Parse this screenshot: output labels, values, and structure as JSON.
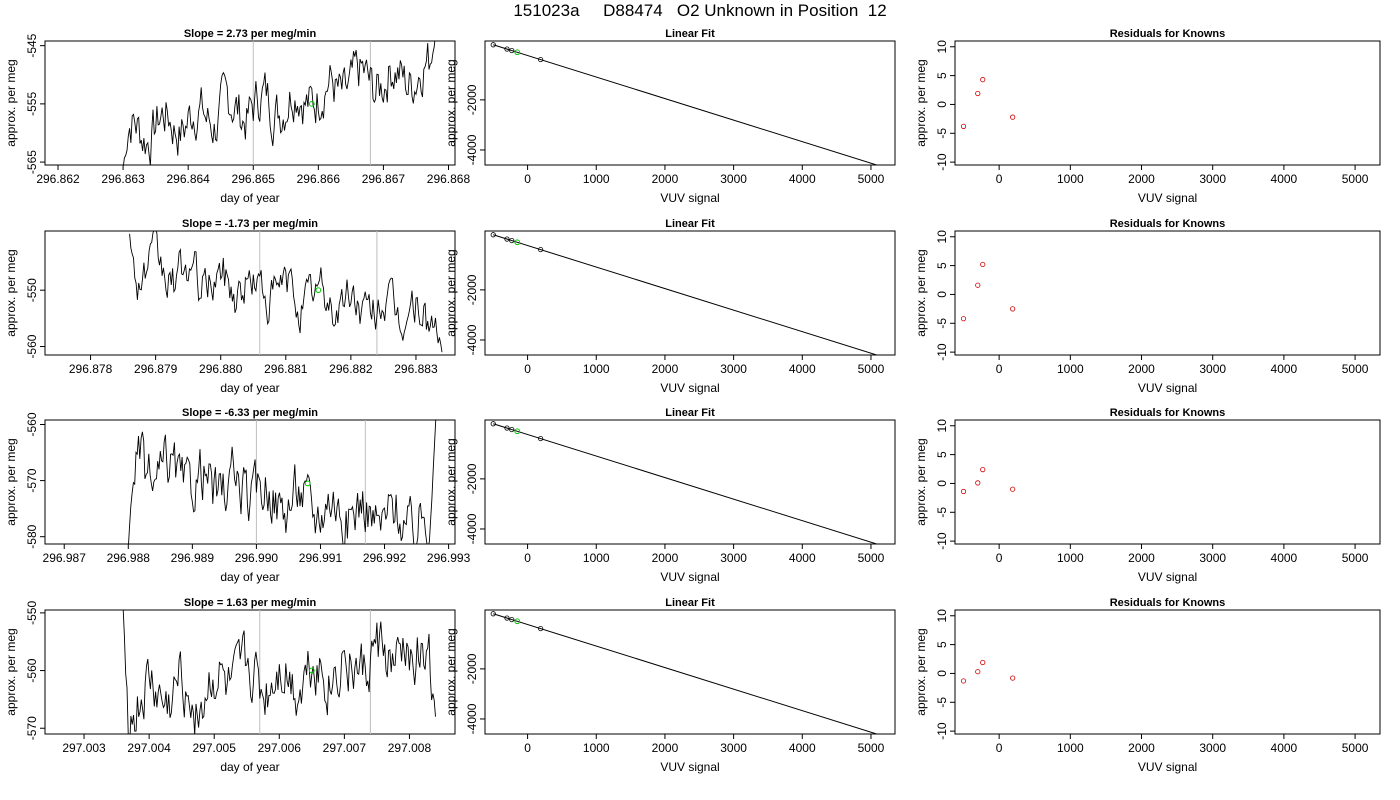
{
  "page": {
    "title": "151023a     D88474   O2 Unknown in Position  12"
  },
  "chart_data": [
    {
      "type": "line",
      "title": "Slope =  2.73  per meg/min",
      "xlabel": "day of year",
      "ylabel": "approx. per meg",
      "xlim": [
        296.8618,
        296.8681
      ],
      "ylim": [
        -565.5,
        -544.2
      ],
      "xticks": [
        "296.862",
        "296.863",
        "296.864",
        "296.865",
        "296.866",
        "296.867",
        "296.868"
      ],
      "xtick_values": [
        296.862,
        296.863,
        296.864,
        296.865,
        296.866,
        296.867,
        296.868
      ],
      "yticks": [
        "-545",
        "-555",
        "-565"
      ],
      "ytick_values": [
        -545,
        -555,
        -565
      ],
      "vlines": [
        296.865,
        296.8668
      ],
      "x_start": 296.863,
      "x_end": 296.8678,
      "y_start": -566,
      "trend_from": -560,
      "trend_to": -549,
      "amp": 3.8,
      "end_value": -543,
      "points_green": [
        {
          "x": 296.8659,
          "y": -555
        }
      ]
    },
    {
      "type": "scatter",
      "title": "Linear Fit",
      "xlabel": "VUV signal",
      "ylabel": "approx. per meg",
      "xlim": [
        -620,
        5350
      ],
      "ylim": [
        -4600,
        350
      ],
      "xticks": [
        "0",
        "1000",
        "2000",
        "3000",
        "4000",
        "5000"
      ],
      "xtick_values": [
        0,
        1000,
        2000,
        3000,
        4000,
        5000
      ],
      "yticks": [
        "-2000",
        "-4000"
      ],
      "ytick_values": [
        -2000,
        -4000
      ],
      "line": {
        "x": [
          -500,
          5200
        ],
        "y": [
          200,
          -4700
        ]
      },
      "points_black": [
        {
          "x": -500,
          "y": 200
        },
        {
          "x": -300,
          "y": 29
        },
        {
          "x": -230,
          "y": -31
        },
        {
          "x": 190,
          "y": -391
        }
      ],
      "points_green": [
        {
          "x": -150,
          "y": -100
        }
      ]
    },
    {
      "type": "scatter",
      "title": "Residuals for Knowns",
      "xlabel": "VUV signal",
      "ylabel": "approx. per meg",
      "xlim": [
        -620,
        5350
      ],
      "ylim": [
        -10.5,
        11
      ],
      "xticks": [
        "0",
        "1000",
        "2000",
        "3000",
        "4000",
        "5000"
      ],
      "xtick_values": [
        0,
        1000,
        2000,
        3000,
        4000,
        5000
      ],
      "yticks": [
        "10",
        "5",
        "0",
        "-5",
        "-10"
      ],
      "ytick_values": [
        10,
        5,
        0,
        -5,
        -10
      ],
      "points_red": [
        {
          "x": -500,
          "y": -3.8
        },
        {
          "x": -300,
          "y": 1.9
        },
        {
          "x": -230,
          "y": 4.3
        },
        {
          "x": 190,
          "y": -2.2
        }
      ]
    },
    {
      "type": "line",
      "title": "Slope =  -1.73  per meg/min",
      "xlabel": "day of year",
      "ylabel": "approx. per meg",
      "xlim": [
        296.8773,
        296.8836
      ],
      "ylim": [
        -561.5,
        -539.5
      ],
      "xticks": [
        "296.878",
        "296.879",
        "296.880",
        "296.881",
        "296.882",
        "296.883"
      ],
      "xtick_values": [
        296.878,
        296.879,
        296.88,
        296.881,
        296.882,
        296.883
      ],
      "yticks": [
        "-550",
        "-560"
      ],
      "ytick_values": [
        -550,
        -560
      ],
      "vlines": [
        296.8806,
        296.8824
      ],
      "x_start": 296.8786,
      "x_end": 296.8834,
      "y_start": -540,
      "trend_from": -546,
      "trend_to": -555,
      "amp": 3.3,
      "end_value": -561,
      "points_green": [
        {
          "x": 296.8815,
          "y": -550
        }
      ]
    },
    {
      "type": "scatter",
      "title": "Linear Fit",
      "xlabel": "VUV signal",
      "ylabel": "approx. per meg",
      "xlim": [
        -620,
        5350
      ],
      "ylim": [
        -4600,
        350
      ],
      "xticks": [
        "0",
        "1000",
        "2000",
        "3000",
        "4000",
        "5000"
      ],
      "xtick_values": [
        0,
        1000,
        2000,
        3000,
        4000,
        5000
      ],
      "yticks": [
        "-2000",
        "-4000"
      ],
      "ytick_values": [
        -2000,
        -4000
      ],
      "line": {
        "x": [
          -500,
          5200
        ],
        "y": [
          200,
          -4700
        ]
      },
      "points_black": [
        {
          "x": -500,
          "y": 200
        },
        {
          "x": -300,
          "y": 29
        },
        {
          "x": -230,
          "y": -31
        },
        {
          "x": 190,
          "y": -391
        }
      ],
      "points_green": [
        {
          "x": -150,
          "y": -100
        }
      ]
    },
    {
      "type": "scatter",
      "title": "Residuals for Knowns",
      "xlabel": "VUV signal",
      "ylabel": "approx. per meg",
      "xlim": [
        -620,
        5350
      ],
      "ylim": [
        -10.5,
        11
      ],
      "xticks": [
        "0",
        "1000",
        "2000",
        "3000",
        "4000",
        "5000"
      ],
      "xtick_values": [
        0,
        1000,
        2000,
        3000,
        4000,
        5000
      ],
      "yticks": [
        "10",
        "5",
        "0",
        "-5",
        "-10"
      ],
      "ytick_values": [
        10,
        5,
        0,
        -5,
        -10
      ],
      "points_red": [
        {
          "x": -500,
          "y": -4.2
        },
        {
          "x": -300,
          "y": 1.6
        },
        {
          "x": -230,
          "y": 5.2
        },
        {
          "x": 190,
          "y": -2.5
        }
      ]
    },
    {
      "type": "line",
      "title": "Slope =  -6.33  per meg/min",
      "xlabel": "day of year",
      "ylabel": "approx. per meg",
      "xlim": [
        296.9867,
        296.9931
      ],
      "ylim": [
        -581.3,
        -559.2
      ],
      "xticks": [
        "296.987",
        "296.988",
        "296.989",
        "296.990",
        "296.991",
        "296.992",
        "296.993"
      ],
      "xtick_values": [
        296.987,
        296.988,
        296.989,
        296.99,
        296.991,
        296.992,
        296.993
      ],
      "yticks": [
        "-560",
        "-570",
        "-580"
      ],
      "ytick_values": [
        -560,
        -570,
        -580
      ],
      "vlines": [
        296.99,
        296.9917
      ],
      "x_start": 296.988,
      "x_end": 296.9928,
      "y_start": -582,
      "trend_from": -568,
      "trend_to": -578,
      "amp": 4.2,
      "end_value": -559,
      "points_green": [
        {
          "x": 296.9908,
          "y": -570.5
        }
      ]
    },
    {
      "type": "scatter",
      "title": "Linear Fit",
      "xlabel": "VUV signal",
      "ylabel": "approx. per meg",
      "xlim": [
        -620,
        5350
      ],
      "ylim": [
        -4600,
        350
      ],
      "xticks": [
        "0",
        "1000",
        "2000",
        "3000",
        "4000",
        "5000"
      ],
      "xtick_values": [
        0,
        1000,
        2000,
        3000,
        4000,
        5000
      ],
      "yticks": [
        "-2000",
        "-4000"
      ],
      "ytick_values": [
        -2000,
        -4000
      ],
      "line": {
        "x": [
          -500,
          5200
        ],
        "y": [
          200,
          -4700
        ]
      },
      "points_black": [
        {
          "x": -500,
          "y": 200
        },
        {
          "x": -300,
          "y": 29
        },
        {
          "x": -230,
          "y": -31
        },
        {
          "x": 190,
          "y": -391
        }
      ],
      "points_green": [
        {
          "x": -150,
          "y": -100
        }
      ]
    },
    {
      "type": "scatter",
      "title": "Residuals for Knowns",
      "xlabel": "VUV signal",
      "ylabel": "approx. per meg",
      "xlim": [
        -620,
        5350
      ],
      "ylim": [
        -10.5,
        11
      ],
      "xticks": [
        "0",
        "1000",
        "2000",
        "3000",
        "4000",
        "5000"
      ],
      "xtick_values": [
        0,
        1000,
        2000,
        3000,
        4000,
        5000
      ],
      "yticks": [
        "10",
        "5",
        "0",
        "-5",
        "-10"
      ],
      "ytick_values": [
        10,
        5,
        0,
        -5,
        -10
      ],
      "points_red": [
        {
          "x": -500,
          "y": -1.4
        },
        {
          "x": -300,
          "y": 0.1
        },
        {
          "x": -230,
          "y": 2.4
        },
        {
          "x": 190,
          "y": -1.0
        }
      ]
    },
    {
      "type": "line",
      "title": "Slope =  1.63  per meg/min",
      "xlabel": "day of year",
      "ylabel": "approx. per meg",
      "xlim": [
        297.0024,
        297.0087
      ],
      "ylim": [
        -571,
        -549.5
      ],
      "xticks": [
        "297.003",
        "297.004",
        "297.005",
        "297.006",
        "297.007",
        "297.008"
      ],
      "xtick_values": [
        297.003,
        297.004,
        297.005,
        297.006,
        297.007,
        297.008
      ],
      "yticks": [
        "-550",
        "-560",
        "-570"
      ],
      "ytick_values": [
        -550,
        -560,
        -570
      ],
      "vlines": [
        297.0057,
        297.0074
      ],
      "x_start": 297.0036,
      "x_end": 297.0084,
      "y_start": -549,
      "trend_from": -566,
      "trend_to": -557,
      "amp": 4.5,
      "end_value": -568,
      "points_green": [
        {
          "x": 297.0065,
          "y": -560
        }
      ]
    },
    {
      "type": "scatter",
      "title": "Linear Fit",
      "xlabel": "VUV signal",
      "ylabel": "approx. per meg",
      "xlim": [
        -620,
        5350
      ],
      "ylim": [
        -4600,
        350
      ],
      "xticks": [
        "0",
        "1000",
        "2000",
        "3000",
        "4000",
        "5000"
      ],
      "xtick_values": [
        0,
        1000,
        2000,
        3000,
        4000,
        5000
      ],
      "yticks": [
        "-2000",
        "-4000"
      ],
      "ytick_values": [
        -2000,
        -4000
      ],
      "line": {
        "x": [
          -500,
          5200
        ],
        "y": [
          200,
          -4700
        ]
      },
      "points_black": [
        {
          "x": -500,
          "y": 200
        },
        {
          "x": -300,
          "y": 29
        },
        {
          "x": -230,
          "y": -31
        },
        {
          "x": 190,
          "y": -391
        }
      ],
      "points_green": [
        {
          "x": -150,
          "y": -100
        }
      ]
    },
    {
      "type": "scatter",
      "title": "Residuals for Knowns",
      "xlabel": "VUV signal",
      "ylabel": "approx. per meg",
      "xlim": [
        -620,
        5350
      ],
      "ylim": [
        -10.5,
        11
      ],
      "xticks": [
        "0",
        "1000",
        "2000",
        "3000",
        "4000",
        "5000"
      ],
      "xtick_values": [
        0,
        1000,
        2000,
        3000,
        4000,
        5000
      ],
      "yticks": [
        "10",
        "5",
        "0",
        "-5",
        "-10"
      ],
      "ytick_values": [
        10,
        5,
        0,
        -5,
        -10
      ],
      "points_red": [
        {
          "x": -500,
          "y": -1.3
        },
        {
          "x": -300,
          "y": 0.3
        },
        {
          "x": -230,
          "y": 1.9
        },
        {
          "x": 190,
          "y": -0.8
        }
      ]
    }
  ]
}
